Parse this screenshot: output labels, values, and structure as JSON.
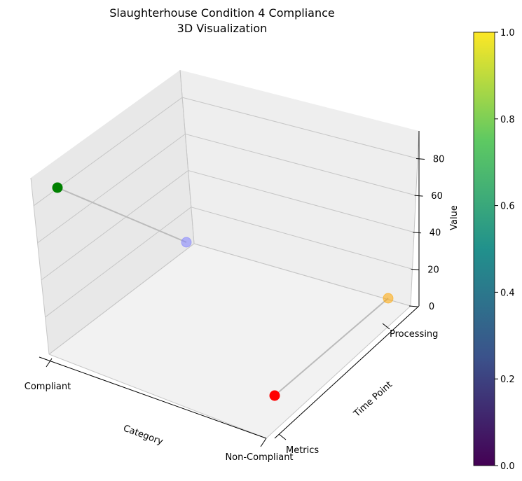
{
  "chart_data": {
    "type": "scatter",
    "title": "Slaughterhouse Condition 4 Compliance",
    "subtitle": "3D Visualization",
    "xlabel": "Category",
    "ylabel": "Time Point",
    "zlabel": "Value",
    "x_categories": [
      "Compliant",
      "Non-Compliant"
    ],
    "y_categories": [
      "Metrics",
      "Processing"
    ],
    "zlim": [
      0,
      95
    ],
    "z_ticks": [
      0,
      20,
      40,
      60,
      80
    ],
    "grid": true,
    "points": [
      {
        "x": "Compliant",
        "y": "Processing",
        "z": 90,
        "color": "#008000"
      },
      {
        "x": "Compliant",
        "y": "Metrics",
        "z": 0,
        "color": "#8080ff"
      },
      {
        "x": "Non-Compliant",
        "y": "Processing",
        "z": 0,
        "color": "#ffa500"
      },
      {
        "x": "Non-Compliant",
        "y": "Metrics",
        "z": 0,
        "color": "#ff0000"
      }
    ],
    "lines": [
      {
        "from": 0,
        "to": 1,
        "color": "#bbbbbb"
      },
      {
        "from": 2,
        "to": 3,
        "color": "#bbbbbb"
      }
    ],
    "colorbar": {
      "min": 0,
      "max": 1,
      "ticks": [
        "0.0",
        "0.2",
        "0.4",
        "0.6",
        "0.8",
        "1.0"
      ],
      "colormap": "viridis",
      "stops": [
        "#440154",
        "#3b528b",
        "#21918c",
        "#5ec962",
        "#fde725"
      ]
    }
  }
}
